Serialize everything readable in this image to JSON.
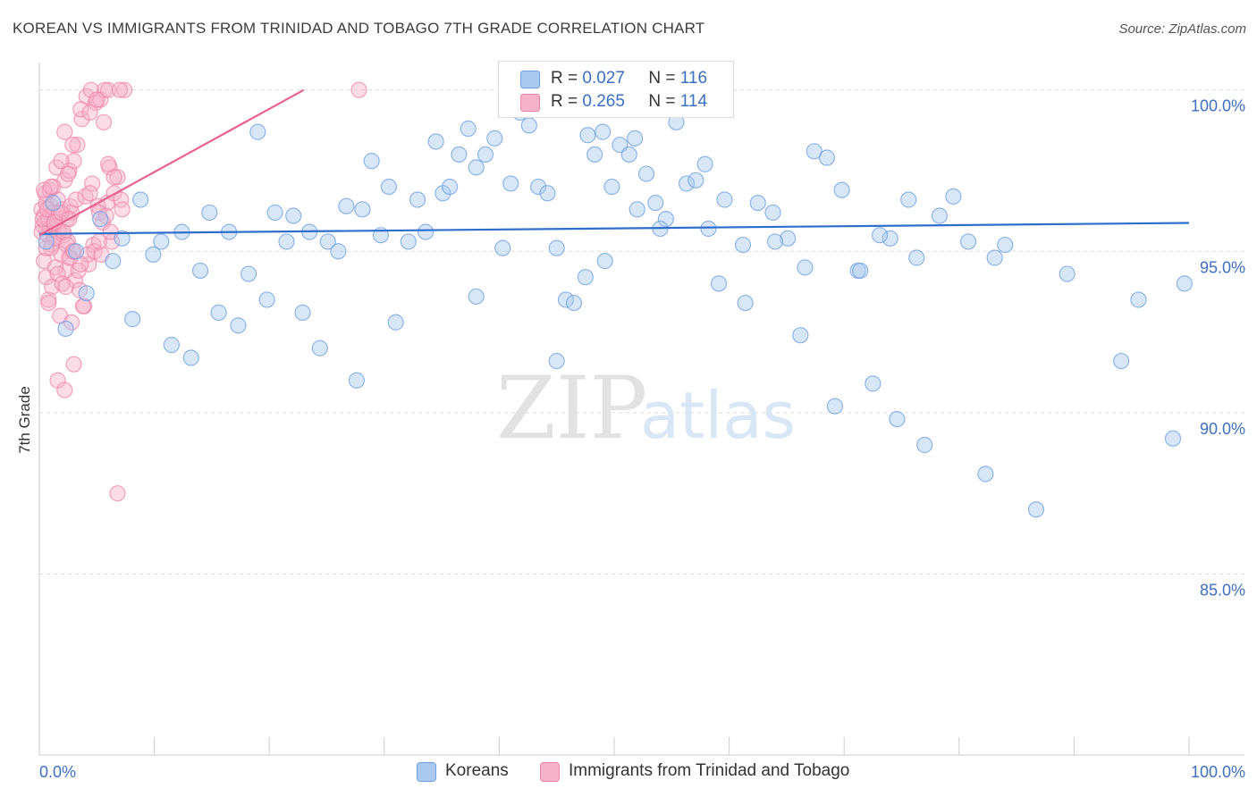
{
  "header": {
    "title": "KOREAN VS IMMIGRANTS FROM TRINIDAD AND TOBAGO 7TH GRADE CORRELATION CHART",
    "source": "Source: ZipAtlas.com"
  },
  "watermark": {
    "zip": "ZIP",
    "atlas": "atlas"
  },
  "legend_stats": [
    {
      "r_label": "R =",
      "r_value": "0.027",
      "n_label": "N =",
      "n_value": "116"
    },
    {
      "r_label": "R =",
      "r_value": "0.265",
      "n_label": "N =",
      "n_value": "114"
    }
  ],
  "bottom_legend": {
    "koreans": "Koreans",
    "tt": "Immigrants from Trinidad and Tobago"
  },
  "colors": {
    "koreans_fill": "#a9c9f0",
    "koreans_stroke": "#6f9fe0",
    "koreans_line": "#2f6fcc",
    "tt_fill": "#f6b2c9",
    "tt_stroke": "#ef86a8",
    "tt_line": "#e8628e",
    "grid": "#dddddd",
    "tick_label": "#3f6fc3"
  },
  "chart_data": {
    "type": "scatter",
    "title": "KOREAN VS IMMIGRANTS FROM TRINIDAD AND TOBAGO 7TH GRADE CORRELATION CHART",
    "xlabel": "",
    "ylabel": "7th Grade",
    "xlim": [
      0,
      100
    ],
    "ylim": [
      80.5,
      100.6
    ],
    "x_tick_labels": [
      "0.0%",
      "100.0%"
    ],
    "y_ticks": [
      100,
      95,
      90,
      85
    ],
    "y_tick_labels": [
      "100.0%",
      "95.0%",
      "90.0%",
      "85.0%"
    ],
    "grid": true,
    "series": [
      {
        "name": "Koreans",
        "r": 0.027,
        "n": 116,
        "trend": {
          "x": [
            0,
            100
          ],
          "y": [
            95.54,
            95.88
          ]
        },
        "x": [
          0.6,
          1.2,
          2.3,
          3.2,
          4.1,
          5.3,
          6.4,
          7.2,
          8.1,
          8.8,
          9.9,
          10.6,
          11.5,
          12.4,
          13.2,
          14.0,
          14.8,
          15.6,
          16.5,
          17.3,
          18.2,
          19.0,
          19.8,
          20.5,
          21.5,
          22.1,
          22.9,
          23.5,
          24.4,
          25.1,
          26.0,
          26.7,
          27.6,
          28.1,
          28.9,
          29.7,
          30.4,
          31.0,
          32.1,
          32.9,
          33.6,
          34.5,
          35.1,
          35.7,
          36.5,
          37.3,
          38.0,
          38.8,
          39.6,
          40.3,
          41.0,
          41.8,
          42.6,
          43.4,
          44.2,
          45.0,
          45.8,
          46.5,
          47.7,
          48.3,
          49.0,
          49.8,
          50.5,
          51.3,
          52.0,
          52.8,
          53.6,
          54.5,
          55.4,
          56.3,
          57.1,
          58.2,
          59.6,
          61.2,
          62.5,
          63.8,
          65.1,
          66.2,
          67.4,
          68.5,
          69.8,
          71.2,
          72.5,
          74.0,
          75.6,
          76.3,
          77.0,
          78.3,
          79.5,
          80.8,
          82.3,
          83.1,
          84.0,
          86.7,
          89.4,
          94.1,
          95.6,
          98.6,
          99.6,
          38.0,
          41.2,
          42.9,
          45.0,
          47.5,
          49.2,
          51.8,
          54.0,
          57.9,
          59.1,
          61.4,
          64.0,
          66.6,
          69.2,
          71.4,
          73.1,
          74.6
        ],
        "y": [
          95.3,
          96.5,
          92.6,
          95.0,
          93.7,
          96.0,
          94.7,
          95.4,
          92.9,
          96.6,
          94.9,
          95.3,
          92.1,
          95.6,
          91.7,
          94.4,
          96.2,
          93.1,
          95.6,
          92.7,
          94.3,
          98.7,
          93.5,
          96.2,
          95.3,
          96.1,
          93.1,
          95.6,
          92.0,
          95.3,
          95.0,
          96.4,
          91.0,
          96.3,
          97.8,
          95.5,
          97.0,
          92.8,
          95.3,
          96.6,
          95.6,
          98.4,
          96.8,
          97.0,
          98.0,
          98.8,
          97.6,
          98.0,
          98.5,
          95.1,
          97.1,
          99.3,
          98.9,
          97.0,
          96.8,
          95.1,
          93.5,
          93.4,
          98.6,
          98.0,
          98.7,
          97.0,
          98.3,
          98.0,
          96.3,
          97.4,
          96.5,
          96.0,
          99.0,
          97.1,
          97.2,
          95.7,
          96.6,
          95.2,
          96.5,
          96.2,
          95.4,
          92.4,
          98.1,
          97.9,
          96.9,
          94.4,
          90.9,
          95.4,
          96.6,
          94.8,
          89.0,
          96.1,
          96.7,
          95.3,
          88.1,
          94.8,
          95.2,
          87.0,
          94.3,
          91.6,
          93.5,
          89.2,
          94.0,
          93.6,
          99.7,
          100.0,
          91.6,
          94.2,
          94.7,
          98.5,
          95.7,
          97.7,
          94.0,
          93.4,
          95.3,
          94.5,
          90.2,
          94.4,
          95.5,
          89.8
        ],
        "xdata_note": "values estimated from gridlines"
      },
      {
        "name": "Immigrants from Trinidad and Tobago",
        "r": 0.265,
        "n": 114,
        "trend": {
          "x": [
            0,
            23
          ],
          "y": [
            95.5,
            100.0
          ]
        },
        "x": [
          0.2,
          0.3,
          0.4,
          0.5,
          0.6,
          0.7,
          0.8,
          0.9,
          1.0,
          1.1,
          1.2,
          1.3,
          1.4,
          1.5,
          1.6,
          1.7,
          1.8,
          1.9,
          2.0,
          2.1,
          2.2,
          2.3,
          2.4,
          2.5,
          2.6,
          2.7,
          2.8,
          2.9,
          3.0,
          3.1,
          3.3,
          3.5,
          3.7,
          3.9,
          4.1,
          4.3,
          4.5,
          4.7,
          4.9,
          5.1,
          5.3,
          5.5,
          5.7,
          5.9,
          6.1,
          6.3,
          6.5,
          6.8,
          7.1,
          7.4,
          0.2,
          0.3,
          0.4,
          0.5,
          0.6,
          0.7,
          0.8,
          0.9,
          1.0,
          1.1,
          1.2,
          1.3,
          1.4,
          1.5,
          1.6,
          1.7,
          1.8,
          1.9,
          2.0,
          2.1,
          2.2,
          2.3,
          2.4,
          2.5,
          2.6,
          2.7,
          2.8,
          2.9,
          3.0,
          3.2,
          3.4,
          3.6,
          3.8,
          4.0,
          4.2,
          4.4,
          4.6,
          4.8,
          5.0,
          5.2,
          5.4,
          5.6,
          5.8,
          6.0,
          6.2,
          6.5,
          6.8,
          7.2,
          0.4,
          0.6,
          0.8,
          1.0,
          1.3,
          1.6,
          1.9,
          2.2,
          2.6,
          3.0,
          3.6,
          4.4,
          5.2,
          6.0,
          7.0,
          27.8
        ],
        "y": [
          96.3,
          95.8,
          96.1,
          95.9,
          96.5,
          95.5,
          96.0,
          95.7,
          96.4,
          95.2,
          96.2,
          95.8,
          96.0,
          95.4,
          96.6,
          95.6,
          96.1,
          94.9,
          96.3,
          95.5,
          97.2,
          94.4,
          96.0,
          95.3,
          97.5,
          94.8,
          96.2,
          95.0,
          97.8,
          94.1,
          98.3,
          93.8,
          99.1,
          93.3,
          99.8,
          94.6,
          100.0,
          95.2,
          99.6,
          96.4,
          99.7,
          95.9,
          100.0,
          96.5,
          97.6,
          95.3,
          96.8,
          97.3,
          96.6,
          100.0,
          95.6,
          96.0,
          94.7,
          96.8,
          94.2,
          96.3,
          93.5,
          96.9,
          95.1,
          93.9,
          97.0,
          95.4,
          94.5,
          97.6,
          94.3,
          96.2,
          93.0,
          97.8,
          94.0,
          95.6,
          98.7,
          93.9,
          95.2,
          97.4,
          94.8,
          96.4,
          92.8,
          98.3,
          95.0,
          96.6,
          94.4,
          99.4,
          93.3,
          96.7,
          94.9,
          99.3,
          97.1,
          95.0,
          99.7,
          96.2,
          94.9,
          99.0,
          96.1,
          100.0,
          95.6,
          97.3,
          87.5,
          96.3,
          96.9,
          95.1,
          93.4,
          97.0,
          95.9,
          91.0,
          96.2,
          90.7,
          96.0,
          91.5,
          94.6,
          96.8,
          95.3,
          97.7,
          100.0,
          100.0
        ],
        "xdata_note": "values estimated from gridlines"
      }
    ]
  }
}
